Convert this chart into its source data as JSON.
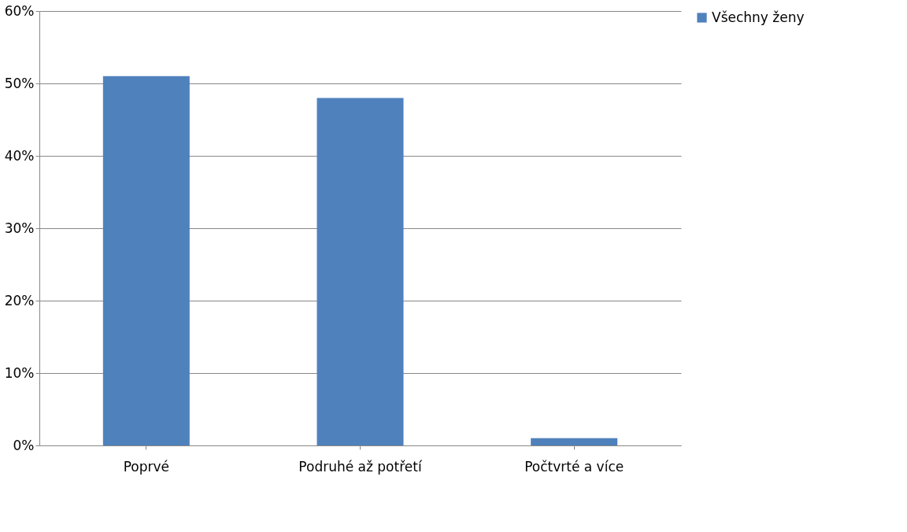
{
  "chart_data": {
    "type": "bar",
    "categories": [
      "Poprvé",
      "Podruhé až potřetí",
      "Počtvrté a více"
    ],
    "series": [
      {
        "name": "Všechny ženy",
        "color": "#4f81bd",
        "values": [
          51,
          48,
          1
        ]
      }
    ],
    "ylim": [
      0,
      60
    ],
    "yticks": [
      {
        "value": 0,
        "label": "0%"
      },
      {
        "value": 10,
        "label": "10%"
      },
      {
        "value": 20,
        "label": "20%"
      },
      {
        "value": 30,
        "label": "30%"
      },
      {
        "value": 40,
        "label": "40%"
      },
      {
        "value": 50,
        "label": "50%"
      },
      {
        "value": 60,
        "label": "60%"
      }
    ],
    "grid": "y",
    "legend": "right"
  }
}
